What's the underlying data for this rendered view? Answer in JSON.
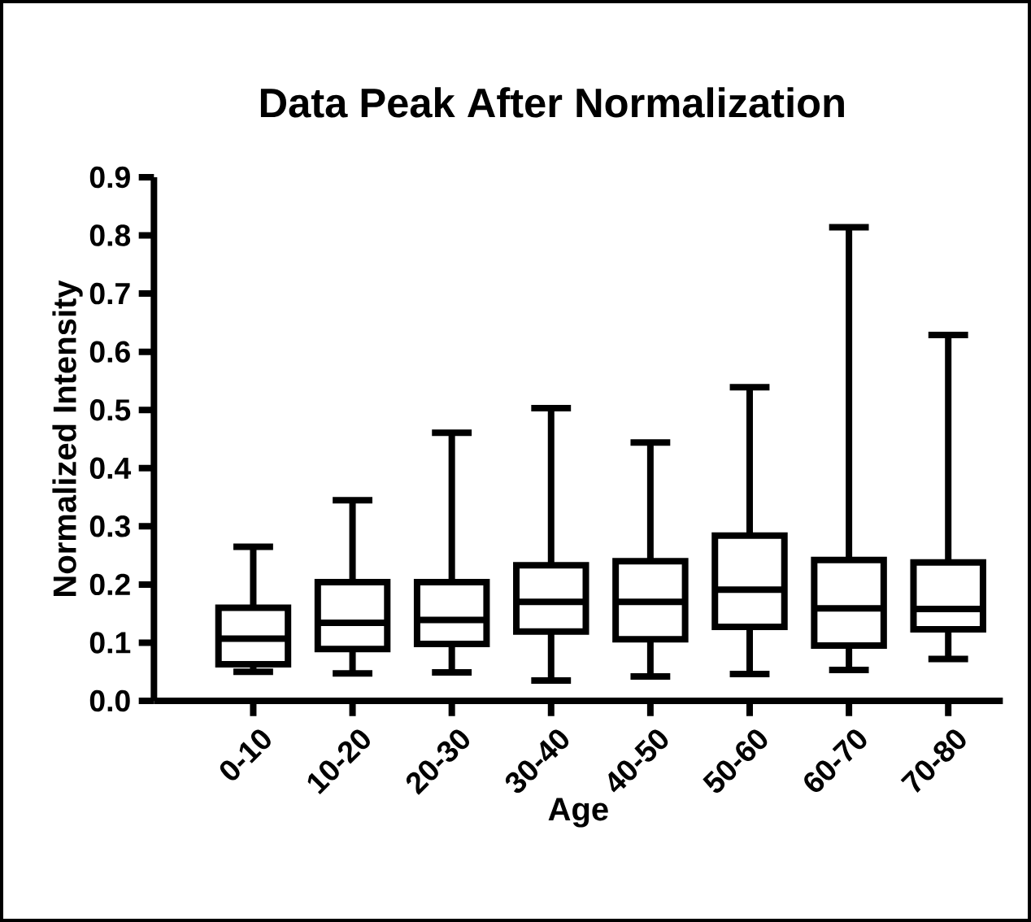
{
  "chart_data": {
    "type": "box",
    "title": "Data Peak After Normalization",
    "xlabel": "Age",
    "ylabel": "Normalized Intensity",
    "categories": [
      "0-10",
      "10-20",
      "20-30",
      "30-40",
      "40-50",
      "50-60",
      "60-70",
      "70-80"
    ],
    "color": "#000000",
    "boxes": [
      {
        "low": 0.05,
        "q1": 0.063,
        "median": 0.107,
        "q3": 0.16,
        "high": 0.265
      },
      {
        "low": 0.047,
        "q1": 0.089,
        "median": 0.134,
        "q3": 0.204,
        "high": 0.345
      },
      {
        "low": 0.049,
        "q1": 0.098,
        "median": 0.139,
        "q3": 0.204,
        "high": 0.461
      },
      {
        "low": 0.035,
        "q1": 0.119,
        "median": 0.17,
        "q3": 0.233,
        "high": 0.503
      },
      {
        "low": 0.042,
        "q1": 0.106,
        "median": 0.17,
        "q3": 0.24,
        "high": 0.444
      },
      {
        "low": 0.046,
        "q1": 0.127,
        "median": 0.191,
        "q3": 0.284,
        "high": 0.539
      },
      {
        "low": 0.053,
        "q1": 0.095,
        "median": 0.159,
        "q3": 0.242,
        "high": 0.814
      },
      {
        "low": 0.072,
        "q1": 0.123,
        "median": 0.158,
        "q3": 0.238,
        "high": 0.629
      }
    ],
    "ylim": [
      0,
      0.9
    ],
    "yticks": [
      {
        "value": 0,
        "label": "0.0"
      },
      {
        "value": 0.1,
        "label": "0.1"
      },
      {
        "value": 0.2,
        "label": "0.2"
      },
      {
        "value": 0.3,
        "label": "0.3"
      },
      {
        "value": 0.4,
        "label": "0.4"
      },
      {
        "value": 0.5,
        "label": "0.5"
      },
      {
        "value": 0.6,
        "label": "0.6"
      },
      {
        "value": 0.7,
        "label": "0.7"
      },
      {
        "value": 0.8,
        "label": "0.8"
      },
      {
        "value": 0.9,
        "label": "0.9"
      }
    ]
  }
}
